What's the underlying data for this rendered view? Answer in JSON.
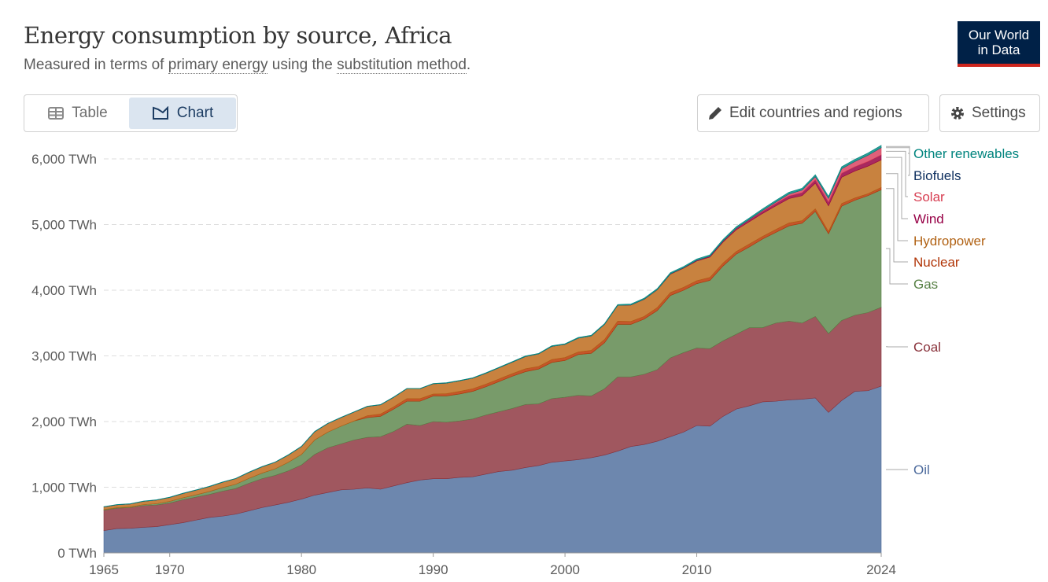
{
  "header": {
    "title": "Energy consumption by source, Africa",
    "subtitle_pre": "Measured in terms of ",
    "subtitle_link1": "primary energy",
    "subtitle_mid": " using the ",
    "subtitle_link2": "substitution method",
    "subtitle_post": "."
  },
  "logo": {
    "line1": "Our World",
    "line2": "in Data",
    "bg": "#002147",
    "accent": "#ce261e"
  },
  "tabs": [
    {
      "label": "Table",
      "icon": "table-icon"
    },
    {
      "label": "Chart",
      "icon": "chart-icon",
      "active": true
    }
  ],
  "toolbar": {
    "edit_label": "Edit countries and regions",
    "edit_icon": "pencil-icon",
    "settings_label": "Settings",
    "settings_icon": "gear-icon"
  },
  "chart_data": {
    "type": "area",
    "stacked": true,
    "title": "Energy consumption by source, Africa",
    "ylim": [
      0,
      6000
    ],
    "yticks": [
      "0 TWh",
      "1,000 TWh",
      "2,000 TWh",
      "3,000 TWh",
      "4,000 TWh",
      "5,000 TWh",
      "6,000 TWh"
    ],
    "ytick_values": [
      0,
      1000,
      2000,
      3000,
      4000,
      5000,
      6000
    ],
    "xlim": [
      1965,
      2024
    ],
    "xticks": [
      1965,
      1970,
      1980,
      1990,
      2000,
      2010,
      2024
    ],
    "grid": "horizontal dashed",
    "legend": "right, inline labels",
    "x_start": 1965,
    "series": [
      {
        "name": "Oil",
        "color": "#4c6a9c",
        "fill": "#6d87ae",
        "values": [
          340,
          370,
          375,
          390,
          400,
          430,
          460,
          500,
          540,
          560,
          590,
          640,
          690,
          730,
          770,
          820,
          880,
          920,
          960,
          970,
          990,
          970,
          1020,
          1070,
          1110,
          1130,
          1130,
          1150,
          1160,
          1200,
          1240,
          1260,
          1300,
          1330,
          1380,
          1400,
          1420,
          1450,
          1490,
          1550,
          1620,
          1650,
          1700,
          1770,
          1840,
          1940,
          1930,
          2080,
          2190,
          2240,
          2300,
          2310,
          2330,
          2340,
          2360,
          2140,
          2320,
          2460,
          2470,
          2540
        ]
      },
      {
        "name": "Coal",
        "color": "#883039",
        "fill": "#a0575f",
        "values": [
          310,
          310,
          315,
          330,
          330,
          330,
          350,
          350,
          350,
          380,
          390,
          420,
          440,
          450,
          480,
          520,
          620,
          680,
          700,
          750,
          770,
          800,
          830,
          890,
          830,
          870,
          860,
          860,
          880,
          900,
          910,
          940,
          960,
          940,
          970,
          970,
          980,
          940,
          1010,
          1130,
          1060,
          1070,
          1090,
          1200,
          1210,
          1180,
          1180,
          1150,
          1140,
          1190,
          1130,
          1190,
          1200,
          1160,
          1240,
          1200,
          1220,
          1160,
          1190,
          1200
        ]
      },
      {
        "name": "Gas",
        "color": "#578145",
        "fill": "#789b6a",
        "values": [
          10,
          10,
          10,
          15,
          20,
          25,
          30,
          35,
          45,
          55,
          65,
          75,
          85,
          100,
          130,
          160,
          220,
          240,
          270,
          290,
          300,
          310,
          340,
          350,
          370,
          390,
          400,
          410,
          420,
          430,
          460,
          490,
          500,
          530,
          550,
          560,
          620,
          650,
          700,
          800,
          800,
          840,
          900,
          950,
          950,
          980,
          1040,
          1140,
          1220,
          1230,
          1350,
          1380,
          1450,
          1520,
          1600,
          1520,
          1740,
          1750,
          1780,
          1790
        ]
      },
      {
        "name": "Nuclear",
        "color": "#b13507",
        "fill": "#c4562a",
        "values": [
          0,
          0,
          0,
          0,
          0,
          0,
          0,
          0,
          0,
          0,
          0,
          0,
          0,
          0,
          0,
          0,
          0,
          0,
          0,
          0,
          30,
          35,
          35,
          40,
          40,
          30,
          35,
          40,
          40,
          40,
          40,
          40,
          45,
          40,
          45,
          45,
          40,
          45,
          50,
          50,
          45,
          40,
          45,
          45,
          45,
          45,
          45,
          45,
          40,
          45,
          40,
          45,
          45,
          40,
          40,
          35,
          40,
          35,
          30,
          35
        ]
      },
      {
        "name": "Hydropower",
        "color": "#b16214",
        "fill": "#c8823f",
        "values": [
          40,
          42,
          45,
          50,
          55,
          60,
          65,
          70,
          75,
          80,
          85,
          90,
          95,
          100,
          110,
          120,
          125,
          130,
          130,
          135,
          140,
          140,
          145,
          150,
          150,
          155,
          160,
          160,
          160,
          165,
          170,
          175,
          185,
          190,
          200,
          200,
          210,
          220,
          230,
          240,
          250,
          260,
          270,
          280,
          290,
          300,
          310,
          320,
          330,
          340,
          350,
          360,
          370,
          380,
          390,
          390,
          400,
          410,
          420,
          420
        ]
      },
      {
        "name": "Wind",
        "color": "#970046",
        "fill": "#a8295f",
        "values": [
          0,
          0,
          0,
          0,
          0,
          0,
          0,
          0,
          0,
          0,
          0,
          0,
          0,
          0,
          0,
          0,
          0,
          0,
          0,
          0,
          0,
          0,
          0,
          0,
          0,
          0,
          0,
          0,
          0,
          0,
          0,
          0,
          0,
          0,
          0,
          0,
          0,
          0,
          0,
          0,
          0,
          2,
          3,
          5,
          7,
          10,
          12,
          15,
          20,
          25,
          30,
          35,
          40,
          45,
          50,
          55,
          60,
          65,
          70,
          75
        ]
      },
      {
        "name": "Solar",
        "color": "#d73c50",
        "fill": "#e0607a",
        "values": [
          0,
          0,
          0,
          0,
          0,
          0,
          0,
          0,
          0,
          0,
          0,
          0,
          0,
          0,
          0,
          0,
          0,
          0,
          0,
          0,
          0,
          0,
          0,
          0,
          0,
          0,
          0,
          0,
          0,
          0,
          0,
          0,
          0,
          0,
          0,
          0,
          0,
          0,
          0,
          0,
          0,
          0,
          0,
          0,
          0,
          0,
          1,
          2,
          4,
          8,
          15,
          22,
          30,
          40,
          50,
          60,
          70,
          80,
          95,
          110
        ]
      },
      {
        "name": "Biofuels",
        "color": "#0e2f5f",
        "fill": "#2c4a78",
        "values": [
          0,
          0,
          0,
          0,
          0,
          0,
          0,
          0,
          0,
          0,
          0,
          0,
          0,
          0,
          0,
          0,
          0,
          0,
          0,
          0,
          0,
          0,
          0,
          0,
          0,
          0,
          0,
          0,
          0,
          0,
          0,
          0,
          0,
          0,
          0,
          0,
          0,
          0,
          0,
          0,
          1,
          1,
          1,
          1,
          1,
          1,
          1,
          1,
          1,
          1,
          1,
          1,
          1,
          1,
          1,
          1,
          1,
          1,
          1,
          1
        ]
      },
      {
        "name": "Other renewables",
        "color": "#00847e",
        "fill": "#2a9d96",
        "values": [
          5,
          5,
          5,
          5,
          5,
          5,
          5,
          5,
          5,
          5,
          5,
          5,
          5,
          5,
          5,
          5,
          5,
          5,
          5,
          5,
          5,
          5,
          5,
          6,
          6,
          6,
          7,
          7,
          7,
          8,
          8,
          8,
          9,
          9,
          10,
          10,
          11,
          11,
          12,
          13,
          14,
          15,
          16,
          17,
          18,
          19,
          20,
          21,
          22,
          23,
          24,
          25,
          26,
          27,
          28,
          28,
          30,
          32,
          34,
          36
        ]
      }
    ]
  }
}
